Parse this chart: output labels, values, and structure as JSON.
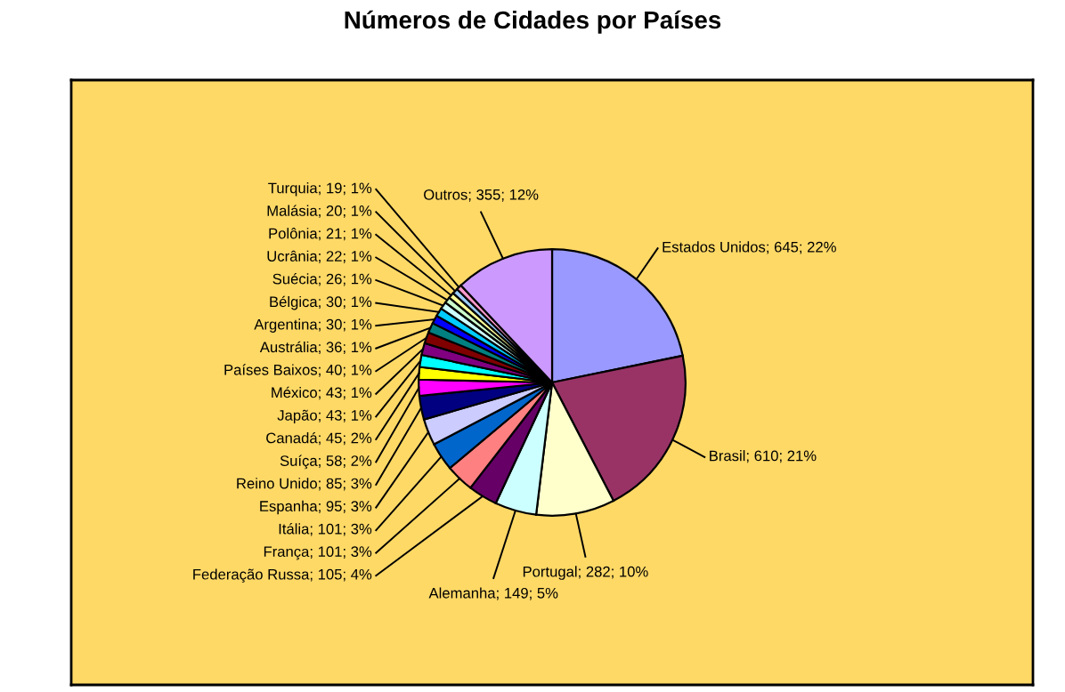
{
  "chart_data": {
    "type": "pie",
    "title": "Números de Cidades por Países",
    "categories": [
      "Estados Unidos",
      "Brasil",
      "Portugal",
      "Alemanha",
      "Federação Russa",
      "França",
      "Itália",
      "Espanha",
      "Reino Unido",
      "Suíça",
      "Canadá",
      "Japão",
      "México",
      "Países Baixos",
      "Austrália",
      "Argentina",
      "Bélgica",
      "Suécia",
      "Ucrânia",
      "Polônia",
      "Malásia",
      "Turquia",
      "Outros"
    ],
    "values": [
      645,
      610,
      282,
      149,
      105,
      101,
      101,
      95,
      85,
      58,
      45,
      43,
      43,
      40,
      36,
      30,
      30,
      26,
      22,
      21,
      20,
      19,
      355
    ],
    "value_labels": [
      "645; 22%",
      "610; 21%",
      "282; 10%",
      "149; 5%",
      "105; 4%",
      "101; 3%",
      "101; 3%",
      "95; 3%",
      "85; 3%",
      "58; 2%",
      "45; 2%",
      "43; 1%",
      "43; 1%",
      "40; 1%",
      "36; 1%",
      "30; 1%",
      "30; 1%",
      "26; 1%",
      "22; 1%",
      "21; 1%",
      "20; 1%",
      "19; 1%",
      "355; 12%"
    ],
    "colors": [
      "#9999ff",
      "#993366",
      "#ffffcc",
      "#ccffff",
      "#660066",
      "#ff8080",
      "#0066cc",
      "#ccccff",
      "#000080",
      "#ff00ff",
      "#ffff00",
      "#00ffff",
      "#800080",
      "#800000",
      "#008080",
      "#0000ff",
      "#00ccff",
      "#ccffff",
      "#ccffcc",
      "#ffff99",
      "#99ccff",
      "#ff99cc",
      "#cc99ff"
    ],
    "legend": false
  }
}
